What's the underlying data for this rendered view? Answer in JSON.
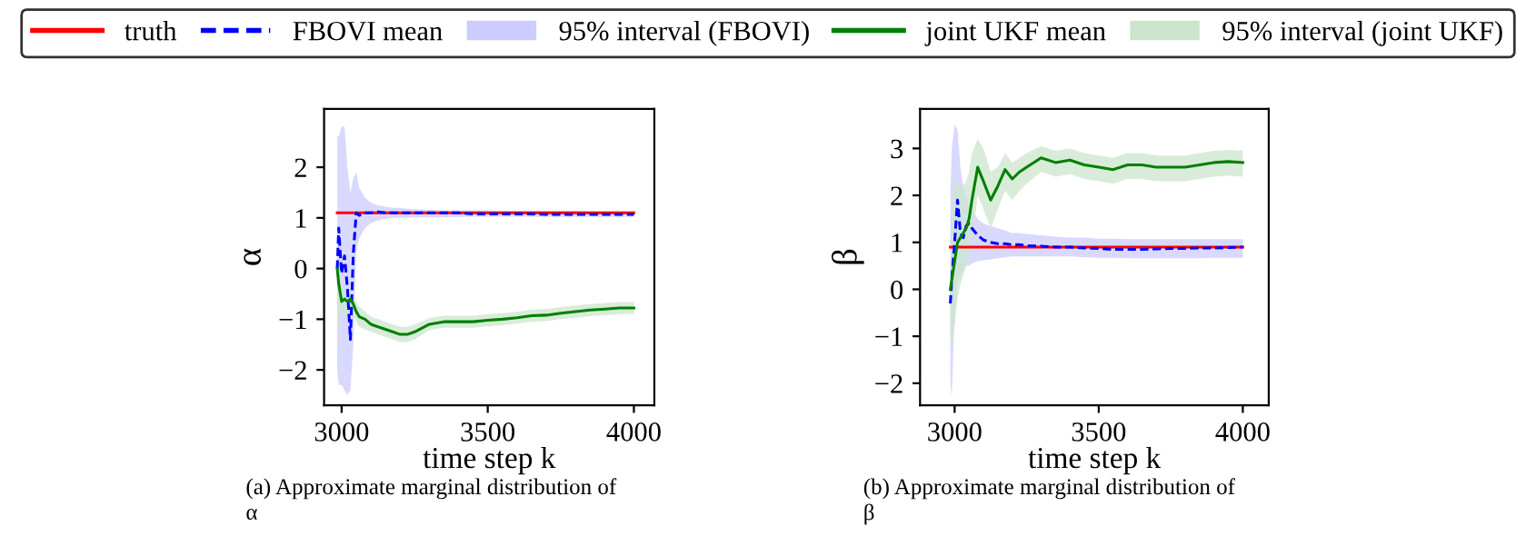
{
  "chart_data": [
    {
      "type": "line",
      "xlabel": "time step k",
      "ylabel": "α",
      "legend": "top",
      "grid": false,
      "annotations": [
        "(a) Approximate marginal distribution of α"
      ],
      "x": [
        2985,
        2990,
        3000,
        3010,
        3020,
        3030,
        3040,
        3050,
        3060,
        3080,
        3100,
        3125,
        3150,
        3175,
        3200,
        3225,
        3250,
        3300,
        3350,
        3400,
        3450,
        3500,
        3550,
        3600,
        3650,
        3700,
        3750,
        3800,
        3850,
        3900,
        3950,
        4000
      ],
      "xlim": [
        2940,
        4070
      ],
      "xticks": [
        3000,
        3500,
        4000
      ],
      "ylim": [
        -2.7,
        3.15
      ],
      "yticks": [
        -2,
        -1,
        0,
        1,
        2
      ],
      "series": [
        {
          "name": "truth",
          "color": "#ff0000",
          "line_style": "solid",
          "values": [
            1.1,
            1.1,
            1.1,
            1.1,
            1.1,
            1.1,
            1.1,
            1.1,
            1.1,
            1.1,
            1.1,
            1.1,
            1.1,
            1.1,
            1.1,
            1.1,
            1.1,
            1.1,
            1.1,
            1.1,
            1.1,
            1.1,
            1.1,
            1.1,
            1.1,
            1.1,
            1.1,
            1.1,
            1.1,
            1.1,
            1.1,
            1.1
          ]
        },
        {
          "name": "FBOVI mean",
          "color": "#0000ff",
          "line_style": "dashed",
          "values": [
            0.0,
            0.8,
            -0.1,
            0.25,
            -0.4,
            -1.4,
            0.3,
            1.1,
            1.05,
            1.1,
            1.1,
            1.12,
            1.1,
            1.1,
            1.1,
            1.1,
            1.1,
            1.1,
            1.1,
            1.1,
            1.08,
            1.08,
            1.08,
            1.08,
            1.08,
            1.07,
            1.07,
            1.07,
            1.07,
            1.07,
            1.07,
            1.07
          ]
        },
        {
          "name": "95% interval (FBOVI)",
          "color": "#ccccff",
          "values": [
            null,
            null,
            null,
            null,
            null,
            null,
            null,
            null,
            null,
            null,
            null,
            null,
            null,
            null,
            null,
            null,
            null,
            null,
            null,
            null,
            null,
            null,
            null,
            null,
            null,
            null,
            null,
            null,
            null,
            null,
            null,
            null
          ],
          "upper": [
            2.6,
            2.6,
            2.8,
            2.8,
            2.0,
            1.5,
            1.8,
            1.9,
            1.6,
            1.4,
            1.3,
            1.25,
            1.22,
            1.2,
            1.2,
            1.18,
            1.17,
            1.16,
            1.15,
            1.15,
            1.15,
            1.15,
            1.14,
            1.14,
            1.14,
            1.14,
            1.14,
            1.14,
            1.13,
            1.13,
            1.13,
            1.13
          ],
          "lower": [
            -2.0,
            -2.3,
            -2.3,
            -2.4,
            -2.5,
            -2.4,
            -1.5,
            0.3,
            0.6,
            0.8,
            0.9,
            0.95,
            0.98,
            1.0,
            1.0,
            1.0,
            1.01,
            1.01,
            1.01,
            1.02,
            1.02,
            1.02,
            1.02,
            1.02,
            1.02,
            1.02,
            1.02,
            1.02,
            1.02,
            1.02,
            1.02,
            1.02
          ]
        },
        {
          "name": "joint UKF mean",
          "color": "#008000",
          "line_style": "solid",
          "values": [
            0.0,
            -0.3,
            -0.65,
            -0.6,
            -0.65,
            -0.6,
            -0.7,
            -0.85,
            -0.95,
            -1.0,
            -1.1,
            -1.15,
            -1.2,
            -1.25,
            -1.3,
            -1.3,
            -1.25,
            -1.1,
            -1.05,
            -1.05,
            -1.05,
            -1.02,
            -1.0,
            -0.97,
            -0.93,
            -0.92,
            -0.88,
            -0.85,
            -0.82,
            -0.8,
            -0.78,
            -0.78
          ]
        },
        {
          "name": "95% interval (joint UKF)",
          "color": "#cce5cc",
          "values": [
            null,
            null,
            null,
            null,
            null,
            null,
            null,
            null,
            null,
            null,
            null,
            null,
            null,
            null,
            null,
            null,
            null,
            null,
            null,
            null,
            null,
            null,
            null,
            null,
            null,
            null,
            null,
            null,
            null,
            null,
            null,
            null
          ],
          "upper": [
            0.3,
            0.0,
            -0.4,
            -0.4,
            -0.45,
            -0.45,
            -0.5,
            -0.65,
            -0.75,
            -0.85,
            -0.95,
            -1.0,
            -1.05,
            -1.1,
            -1.15,
            -1.15,
            -1.1,
            -0.98,
            -0.93,
            -0.93,
            -0.93,
            -0.9,
            -0.88,
            -0.85,
            -0.81,
            -0.8,
            -0.76,
            -0.73,
            -0.7,
            -0.68,
            -0.66,
            -0.66
          ],
          "lower": [
            -2.3,
            -1.0,
            -0.9,
            -0.85,
            -0.9,
            -0.8,
            -0.9,
            -1.05,
            -1.15,
            -1.2,
            -1.25,
            -1.3,
            -1.35,
            -1.4,
            -1.45,
            -1.45,
            -1.4,
            -1.22,
            -1.17,
            -1.17,
            -1.17,
            -1.14,
            -1.12,
            -1.09,
            -1.05,
            -1.04,
            -1.0,
            -0.97,
            -0.94,
            -0.92,
            -0.9,
            -0.9
          ]
        }
      ]
    },
    {
      "type": "line",
      "xlabel": "time step k",
      "ylabel": "β",
      "grid": false,
      "annotations": [
        "(b) Approximate marginal distribution of β"
      ],
      "x": [
        2985,
        2990,
        3000,
        3010,
        3020,
        3030,
        3040,
        3050,
        3060,
        3080,
        3100,
        3125,
        3150,
        3175,
        3200,
        3225,
        3250,
        3300,
        3350,
        3400,
        3450,
        3500,
        3550,
        3600,
        3650,
        3700,
        3750,
        3800,
        3850,
        3900,
        3950,
        4000
      ],
      "xlim": [
        2880,
        4090
      ],
      "xticks": [
        3000,
        3500,
        4000
      ],
      "ylim": [
        -2.47,
        3.84
      ],
      "yticks": [
        -2,
        -1,
        0,
        1,
        2,
        3
      ],
      "series": [
        {
          "color": "#ff0000",
          "line_style": "solid",
          "values": [
            0.9,
            0.9,
            0.9,
            0.9,
            0.9,
            0.9,
            0.9,
            0.9,
            0.9,
            0.9,
            0.9,
            0.9,
            0.9,
            0.9,
            0.9,
            0.9,
            0.9,
            0.9,
            0.9,
            0.9,
            0.9,
            0.9,
            0.9,
            0.9,
            0.9,
            0.9,
            0.9,
            0.9,
            0.9,
            0.9,
            0.9,
            0.9
          ]
        },
        {
          "color": "#0000ff",
          "line_style": "dashed",
          "values": [
            -0.3,
            0.2,
            1.0,
            1.9,
            1.2,
            1.1,
            1.35,
            1.4,
            1.3,
            1.15,
            1.05,
            1.0,
            0.97,
            0.97,
            0.95,
            0.95,
            0.93,
            0.92,
            0.9,
            0.9,
            0.88,
            0.87,
            0.85,
            0.85,
            0.85,
            0.86,
            0.87,
            0.87,
            0.88,
            0.88,
            0.89,
            0.9
          ]
        },
        {
          "color": "#ccccff",
          "values": [
            null,
            null,
            null,
            null,
            null,
            null,
            null,
            null,
            null,
            null,
            null,
            null,
            null,
            null,
            null,
            null,
            null,
            null,
            null,
            null,
            null,
            null,
            null,
            null,
            null,
            null,
            null,
            null,
            null,
            null,
            null,
            null
          ],
          "upper": [
            2.0,
            3.0,
            3.5,
            3.4,
            2.6,
            2.2,
            2.0,
            1.8,
            1.7,
            1.5,
            1.4,
            1.35,
            1.3,
            1.25,
            1.2,
            1.2,
            1.18,
            1.15,
            1.12,
            1.1,
            1.1,
            1.08,
            1.08,
            1.07,
            1.07,
            1.07,
            1.07,
            1.07,
            1.07,
            1.07,
            1.07,
            1.07
          ],
          "lower": [
            -2.0,
            -2.3,
            -0.5,
            0.2,
            0.3,
            0.4,
            0.5,
            0.5,
            0.55,
            0.6,
            0.62,
            0.64,
            0.66,
            0.68,
            0.7,
            0.7,
            0.7,
            0.7,
            0.7,
            0.7,
            0.68,
            0.67,
            0.67,
            0.66,
            0.66,
            0.66,
            0.66,
            0.66,
            0.66,
            0.67,
            0.67,
            0.67
          ]
        },
        {
          "color": "#008000",
          "line_style": "solid",
          "values": [
            0.0,
            0.2,
            0.6,
            1.0,
            1.1,
            1.2,
            1.3,
            1.5,
            1.9,
            2.6,
            2.3,
            1.9,
            2.2,
            2.55,
            2.35,
            2.5,
            2.6,
            2.8,
            2.7,
            2.75,
            2.65,
            2.6,
            2.55,
            2.65,
            2.65,
            2.6,
            2.6,
            2.6,
            2.65,
            2.7,
            2.72,
            2.7
          ]
        },
        {
          "color": "#cce5cc",
          "values": [
            null,
            null,
            null,
            null,
            null,
            null,
            null,
            null,
            null,
            null,
            null,
            null,
            null,
            null,
            null,
            null,
            null,
            null,
            null,
            null,
            null,
            null,
            null,
            null,
            null,
            null,
            null,
            null,
            null,
            null,
            null,
            null
          ],
          "upper": [
            0.5,
            1.5,
            2.3,
            2.3,
            2.2,
            2.2,
            2.3,
            2.5,
            2.9,
            3.2,
            3.0,
            2.5,
            2.6,
            2.9,
            2.7,
            2.8,
            2.9,
            3.05,
            2.95,
            3.0,
            2.9,
            2.85,
            2.8,
            2.9,
            2.9,
            2.85,
            2.85,
            2.85,
            2.9,
            2.95,
            2.97,
            2.95
          ],
          "lower": [
            -1.0,
            -1.2,
            -0.8,
            -0.2,
            0.1,
            0.3,
            0.5,
            0.7,
            1.0,
            2.0,
            1.7,
            1.3,
            1.7,
            2.1,
            1.9,
            2.1,
            2.25,
            2.5,
            2.4,
            2.45,
            2.35,
            2.3,
            2.25,
            2.35,
            2.35,
            2.3,
            2.3,
            2.3,
            2.35,
            2.4,
            2.42,
            2.4
          ]
        }
      ]
    }
  ]
}
